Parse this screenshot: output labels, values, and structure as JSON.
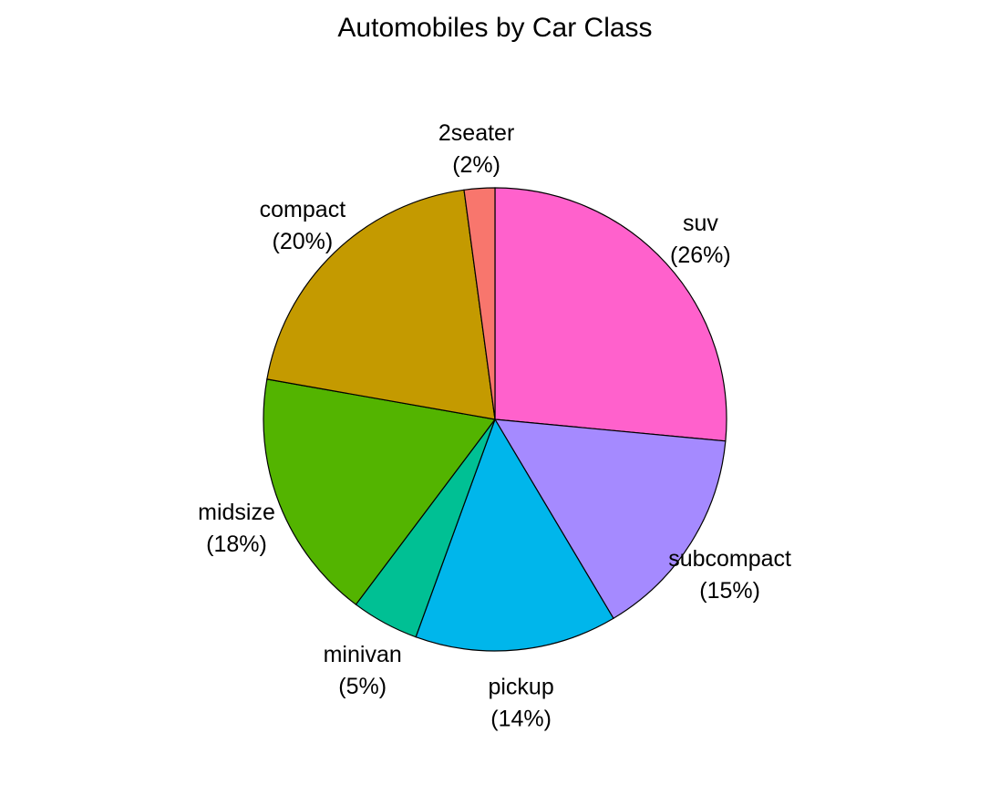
{
  "chart_data": {
    "type": "pie",
    "title": "Automobiles by Car Class",
    "start_angle_deg": 90,
    "direction": "clockwise",
    "slices": [
      {
        "name": "suv",
        "pct_label": "(26%)",
        "value": 62,
        "color": "#FF61CC"
      },
      {
        "name": "subcompact",
        "pct_label": "(15%)",
        "value": 35,
        "color": "#A58AFF"
      },
      {
        "name": "pickup",
        "pct_label": "(14%)",
        "value": 33,
        "color": "#00B6EB"
      },
      {
        "name": "minivan",
        "pct_label": "(5%)",
        "value": 11,
        "color": "#00C094"
      },
      {
        "name": "midsize",
        "pct_label": "(18%)",
        "value": 41,
        "color": "#53B400"
      },
      {
        "name": "compact",
        "pct_label": "(20%)",
        "value": 47,
        "color": "#C49A00"
      },
      {
        "name": "2seater",
        "pct_label": "(2%)",
        "value": 5,
        "color": "#F8766D"
      }
    ]
  }
}
